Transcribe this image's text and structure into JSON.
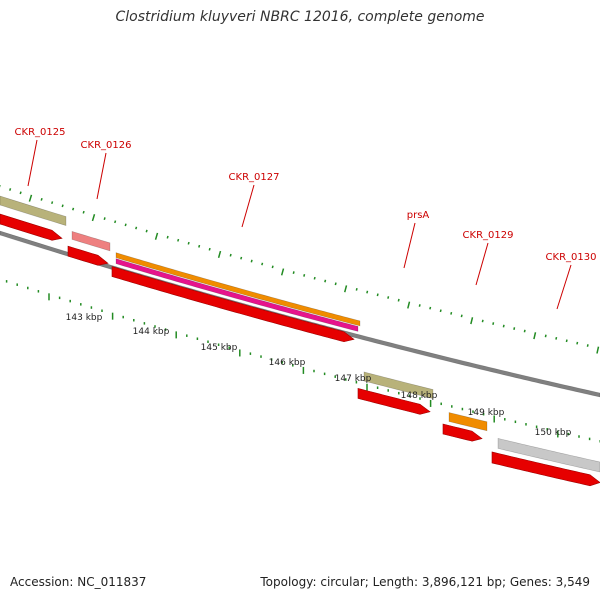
{
  "title": "Clostridium kluyveri NBRC 12016, complete genome",
  "footer": {
    "accession": "Accession: NC_011837",
    "summary": "Topology: circular; Length: 3,896,121 bp; Genes: 3,549"
  },
  "colors": {
    "forward_cds": "#e60000",
    "olive": "#b8b27a",
    "pink": "#ee8080",
    "orange": "#f08c00",
    "magenta": "#e6148c",
    "gray_feature": "#c8c8c8",
    "backbone": "#808080",
    "tick": "#228b22",
    "label": "#cc0000"
  },
  "genes": [
    {
      "name": "CKR_0125"
    },
    {
      "name": "CKR_0126"
    },
    {
      "name": "CKR_0127"
    },
    {
      "name": "prsA"
    },
    {
      "name": "CKR_0129"
    },
    {
      "name": "CKR_0130"
    }
  ],
  "scale_labels": [
    "143 kbp",
    "144 kbp",
    "145 kbp",
    "146 kbp",
    "147 kbp",
    "148 kbp",
    "149 kbp",
    "150 kbp"
  ]
}
